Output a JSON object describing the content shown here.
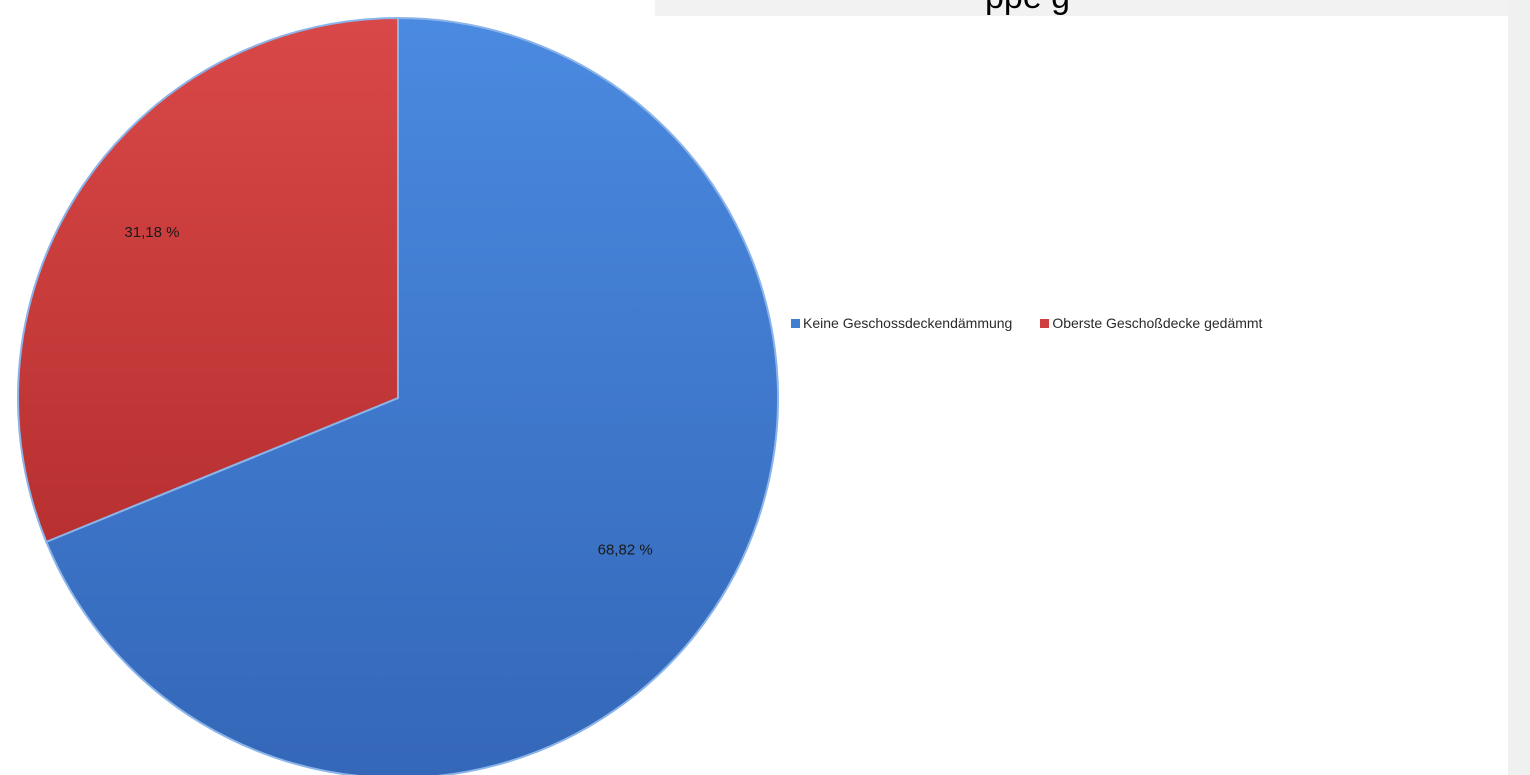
{
  "header": {
    "partial_title": "ppe   g"
  },
  "chart_data": {
    "type": "pie",
    "categories": [
      "Keine Geschossdeckendämmung",
      "Oberste Geschoßdecke gedämmt"
    ],
    "values": [
      68.82,
      31.18
    ],
    "data_labels": [
      "68,82 %",
      "31,18 %"
    ],
    "colors": [
      "#3f7ed0",
      "#cf3f3f"
    ],
    "start_angle_deg": 0,
    "direction": "clockwise",
    "legend_position": "right",
    "title": "",
    "xlabel": "",
    "ylabel": ""
  }
}
